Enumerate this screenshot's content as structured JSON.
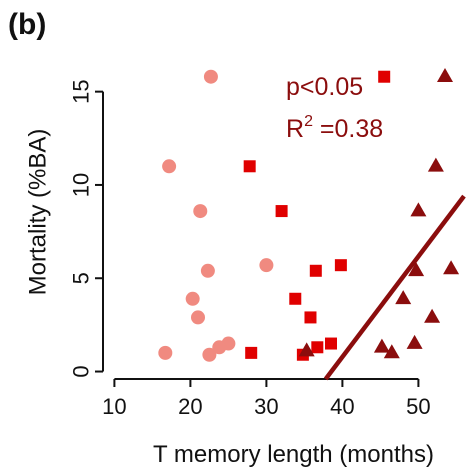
{
  "chart_data": {
    "type": "scatter",
    "panel_label": "(b)",
    "xlabel": "T memory length (months)",
    "ylabel": "Mortality (%BA)",
    "xlim": [
      8.5,
      56
    ],
    "ylim": [
      -0.4,
      17.5
    ],
    "x_ticks": [
      10,
      20,
      30,
      40,
      50
    ],
    "y_ticks": [
      0,
      5,
      10,
      15
    ],
    "grid": false,
    "series": [
      {
        "marker": "circle",
        "color": "#f08a80",
        "points": [
          [
            22.7,
            15.8
          ],
          [
            17.2,
            11.0
          ],
          [
            21.3,
            8.6
          ],
          [
            22.3,
            5.4
          ],
          [
            30.0,
            5.7
          ],
          [
            20.3,
            3.9
          ],
          [
            21.0,
            2.9
          ],
          [
            16.7,
            1.0
          ],
          [
            22.5,
            0.9
          ],
          [
            23.8,
            1.3
          ],
          [
            25.0,
            1.5
          ]
        ]
      },
      {
        "marker": "square",
        "color": "#e00000",
        "points": [
          [
            45.5,
            15.8
          ],
          [
            27.8,
            11.0
          ],
          [
            32.0,
            8.6
          ],
          [
            39.8,
            5.7
          ],
          [
            36.5,
            5.4
          ],
          [
            33.8,
            3.9
          ],
          [
            35.8,
            2.9
          ],
          [
            28.0,
            1.0
          ],
          [
            36.7,
            1.3
          ],
          [
            38.5,
            1.5
          ],
          [
            34.8,
            0.9
          ]
        ]
      },
      {
        "marker": "triangle",
        "color": "#8b0d0d",
        "points": [
          [
            53.5,
            15.8
          ],
          [
            52.3,
            11.0
          ],
          [
            50.0,
            8.6
          ],
          [
            49.7,
            5.4
          ],
          [
            54.3,
            5.5
          ],
          [
            48.0,
            3.9
          ],
          [
            51.8,
            2.9
          ],
          [
            35.3,
            1.1
          ],
          [
            45.2,
            1.3
          ],
          [
            46.5,
            1.0
          ],
          [
            49.5,
            1.5
          ]
        ]
      }
    ],
    "fit_line": {
      "color": "#8b0d0d",
      "x": [
        37.8,
        56.0
      ],
      "y": [
        -0.4,
        9.4
      ]
    },
    "annotations": {
      "p_text": "p<0.05",
      "r2_prefix": "R",
      "r2_sup": "2",
      "r2_value": " =0.38"
    }
  }
}
